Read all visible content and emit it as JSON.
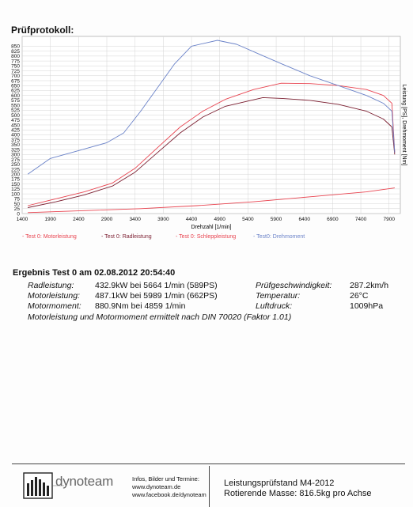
{
  "header": {
    "title": "Prüfprotokoll:"
  },
  "chart_data": {
    "type": "line",
    "xlabel": "Drehzahl [1/min]",
    "ylabel": "Leistung [PS], Drehmoment [Nm]",
    "xlim": [
      1400,
      8100
    ],
    "ylim": [
      0,
      900
    ],
    "x_ticks": [
      1400,
      1900,
      2400,
      2900,
      3400,
      3900,
      4400,
      4900,
      5400,
      5900,
      6400,
      6900,
      7400,
      7900
    ],
    "y_ticks": [
      0,
      25,
      50,
      75,
      100,
      125,
      150,
      175,
      200,
      225,
      250,
      275,
      300,
      325,
      350,
      375,
      400,
      425,
      450,
      475,
      500,
      525,
      550,
      575,
      600,
      625,
      650,
      675,
      700,
      725,
      750,
      775,
      800,
      825,
      850
    ],
    "grid": true,
    "series": [
      {
        "name": "- Test 0: Motorleistung",
        "color": "#e8434f",
        "x": [
          1500,
          2000,
          2500,
          3000,
          3400,
          3800,
          4200,
          4600,
          5000,
          5500,
          5989,
          6500,
          7000,
          7500,
          7800,
          7950,
          8000
        ],
        "y": [
          40,
          75,
          110,
          155,
          230,
          335,
          440,
          520,
          580,
          630,
          662,
          660,
          650,
          630,
          600,
          560,
          310
        ]
      },
      {
        "name": "- Test 0: Radleistung",
        "color": "#7b1e30",
        "x": [
          1500,
          2000,
          2500,
          3000,
          3400,
          3800,
          4200,
          4600,
          5000,
          5664,
          6000,
          6500,
          7000,
          7500,
          7800,
          7950,
          8000
        ],
        "y": [
          30,
          60,
          95,
          140,
          210,
          310,
          410,
          490,
          545,
          589,
          585,
          575,
          555,
          520,
          480,
          440,
          300
        ]
      },
      {
        "name": "- Test 0: Schleppleistung",
        "color": "#e8434f",
        "x": [
          1500,
          2500,
          3500,
          4500,
          5500,
          6500,
          7500,
          8000
        ],
        "y": [
          5,
          15,
          25,
          40,
          60,
          85,
          110,
          130
        ]
      },
      {
        "name": "- Test0: Drehmoment",
        "color": "#6a82c8",
        "x": [
          1500,
          1900,
          2400,
          2900,
          3200,
          3500,
          3800,
          4100,
          4400,
          4859,
          5200,
          5600,
          6000,
          6500,
          7000,
          7500,
          7800,
          7950,
          8000
        ],
        "y": [
          200,
          280,
          320,
          360,
          410,
          520,
          640,
          760,
          850,
          880,
          860,
          810,
          760,
          700,
          650,
          600,
          560,
          520,
          310
        ]
      }
    ]
  },
  "results": {
    "title": "Ergebnis Test 0 am 02.08.2012 20:54:40",
    "rows": [
      {
        "label": "Radleistung:",
        "value": "432.9kW bei 5664 1/min (589PS)",
        "label2": "Prüfgeschwindigkeit:",
        "value2": "287.2km/h"
      },
      {
        "label": "Motorleistung:",
        "value": "487.1kW bei 5989 1/min (662PS)",
        "label2": "Temperatur:",
        "value2": "26°C"
      },
      {
        "label": "Motormoment:",
        "value": "880.9Nm bei 4859 1/min",
        "label2": "Luftdruck:",
        "value2": "1009hPa"
      }
    ],
    "note": "Motorleistung und Motormoment ermittelt nach DIN 70020 (Faktor 1.01)"
  },
  "footer": {
    "logo_text": "dynoteam",
    "info_lines": [
      "Infos, Bilder und Termine:",
      "www.dynoteam.de",
      "www.facebook.de/dynoteam"
    ],
    "stand": "Leistungsprüfstand M4-2012",
    "mass": "Rotierende Masse: 816.5kg pro Achse"
  }
}
